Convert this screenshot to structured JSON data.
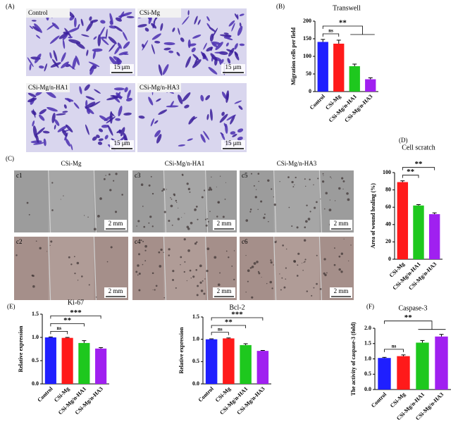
{
  "panels": {
    "A": {
      "label": "(A)",
      "images": [
        {
          "label": "Control",
          "scale": "15 μm"
        },
        {
          "label": "CSi-Mg",
          "scale": "15 μm"
        },
        {
          "label": "CSi-Mg/n-HA1",
          "scale": "15 μm"
        },
        {
          "label": "CSi-Mg/n-HA3",
          "scale": "15 μm"
        }
      ]
    },
    "C": {
      "label": "(C)",
      "columns": [
        "CSi-Mg",
        "CSi-Mg/n-HA1",
        "CSi-Mg/n-HA3"
      ],
      "images": [
        {
          "label": "c1",
          "scale": "2 mm"
        },
        {
          "label": "c3",
          "scale": "2 mm"
        },
        {
          "label": "c5",
          "scale": "2 mm"
        },
        {
          "label": "c2",
          "scale": "2 mm"
        },
        {
          "label": "c4",
          "scale": "2 mm"
        },
        {
          "label": "c6",
          "scale": "2 mm"
        }
      ]
    }
  },
  "chart_data": [
    {
      "type": "bar",
      "panel_label": "(B)",
      "title": "Transwell",
      "y_label": "Migration cells per field",
      "categories": [
        "Control",
        "CSi-Mg",
        "CSi-Mg/n-HA1",
        "CSi-Mg/n-HA3"
      ],
      "values": [
        141,
        136,
        72,
        35
      ],
      "errors": [
        7,
        10,
        6,
        4
      ],
      "colors": [
        "#1f1fff",
        "#ff1a1a",
        "#1ec81e",
        "#a020f0"
      ],
      "ylim": [
        0,
        200
      ],
      "yticks": [
        0,
        50,
        100,
        150,
        200
      ],
      "annotations": [
        {
          "label": "ns",
          "groups": [
            "Control",
            "CSi-Mg"
          ]
        },
        {
          "label": "**",
          "groups": [
            "Control",
            "CSi-Mg/n-HA1",
            "CSi-Mg/n-HA3"
          ]
        }
      ]
    },
    {
      "type": "bar",
      "panel_label": "(D)",
      "title": "Cell scratch",
      "y_label": "Area of wound healing (%)",
      "categories": [
        "CSi-Mg",
        "CSi-Mg/n-HA1",
        "CSi-Mg/n-HA3"
      ],
      "values": [
        89,
        62,
        52
      ],
      "errors": [
        1.5,
        1,
        1.5
      ],
      "colors": [
        "#ff1a1a",
        "#1ec81e",
        "#a020f0"
      ],
      "ylim": [
        0,
        100
      ],
      "yticks": [
        0,
        20,
        40,
        60,
        80,
        100
      ],
      "annotations": [
        {
          "label": "**",
          "groups": [
            "CSi-Mg",
            "CSi-Mg/n-HA1"
          ]
        },
        {
          "label": "**",
          "groups": [
            "CSi-Mg",
            "CSi-Mg/n-HA3"
          ]
        }
      ]
    },
    {
      "type": "bar",
      "panel_label": "(E)",
      "title": "Ki-67",
      "y_label": "Relative expression",
      "categories": [
        "Control",
        "CSi-Mg",
        "CSi-Mg/n-HA1",
        "CSi-Mg/n-HA3"
      ],
      "values": [
        1.0,
        0.99,
        0.88,
        0.76
      ],
      "errors": [
        0.01,
        0.01,
        0.05,
        0.02
      ],
      "colors": [
        "#1f1fff",
        "#ff1a1a",
        "#1ec81e",
        "#a020f0"
      ],
      "ylim": [
        0,
        1.5
      ],
      "yticks": [
        {
          "value": 0,
          "label": "0.0"
        },
        {
          "value": 0.5,
          "label": "0.5"
        },
        {
          "value": 1,
          "label": "1.0"
        },
        {
          "value": 1.5,
          "label": "1.5"
        }
      ],
      "annotations": [
        {
          "label": "ns",
          "groups": [
            "Control",
            "CSi-Mg"
          ]
        },
        {
          "label": "**",
          "groups": [
            "Control",
            "CSi-Mg/n-HA1"
          ]
        },
        {
          "label": "***",
          "groups": [
            "Control",
            "CSi-Mg/n-HA3"
          ]
        }
      ]
    },
    {
      "type": "bar",
      "title": "Bcl-2",
      "y_label": "Relative expression",
      "categories": [
        "Control",
        "CSi-Mg",
        "CSi-Mg/n-HA1",
        "CSi-Mg/n-HA3"
      ],
      "values": [
        1.0,
        1.02,
        0.87,
        0.74
      ],
      "errors": [
        0.01,
        0.01,
        0.03,
        0.01
      ],
      "colors": [
        "#1f1fff",
        "#ff1a1a",
        "#1ec81e",
        "#a020f0"
      ],
      "ylim": [
        0,
        1.5
      ],
      "yticks": [
        {
          "value": 0,
          "label": "0.0"
        },
        {
          "value": 0.5,
          "label": "0.5"
        },
        {
          "value": 1,
          "label": "1.0"
        },
        {
          "value": 1.5,
          "label": "1.5"
        }
      ],
      "annotations": [
        {
          "label": "ns",
          "groups": [
            "Control",
            "CSi-Mg"
          ]
        },
        {
          "label": "**",
          "groups": [
            "Control",
            "CSi-Mg/n-HA1"
          ]
        },
        {
          "label": "***",
          "groups": [
            "Control",
            "CSi-Mg/n-HA3"
          ]
        }
      ]
    },
    {
      "type": "bar",
      "panel_label": "(F)",
      "title": "Caspase-3",
      "y_label": "The activity of caspase-3 (fold)",
      "categories": [
        "Control",
        "CSi-Mg",
        "CSi-Mg/n-HA1",
        "CSi-Mg/n-HA3"
      ],
      "values": [
        1.03,
        1.09,
        1.53,
        1.73
      ],
      "errors": [
        0.02,
        0.04,
        0.07,
        0.07
      ],
      "colors": [
        "#1f1fff",
        "#ff1a1a",
        "#1ec81e",
        "#a020f0"
      ],
      "ylim": [
        0,
        2
      ],
      "yticks": [
        {
          "value": 0,
          "label": "0.0"
        },
        {
          "value": 0.5,
          "label": "0.5"
        },
        {
          "value": 1,
          "label": "1.0"
        },
        {
          "value": 1.5,
          "label": "1.5"
        },
        {
          "value": 2,
          "label": "2.0"
        }
      ],
      "annotations": [
        {
          "label": "ns",
          "groups": [
            "Control",
            "CSi-Mg"
          ]
        },
        {
          "label": "**",
          "groups": [
            "Control",
            "CSi-Mg/n-HA1",
            "CSi-Mg/n-HA3"
          ]
        }
      ]
    }
  ]
}
